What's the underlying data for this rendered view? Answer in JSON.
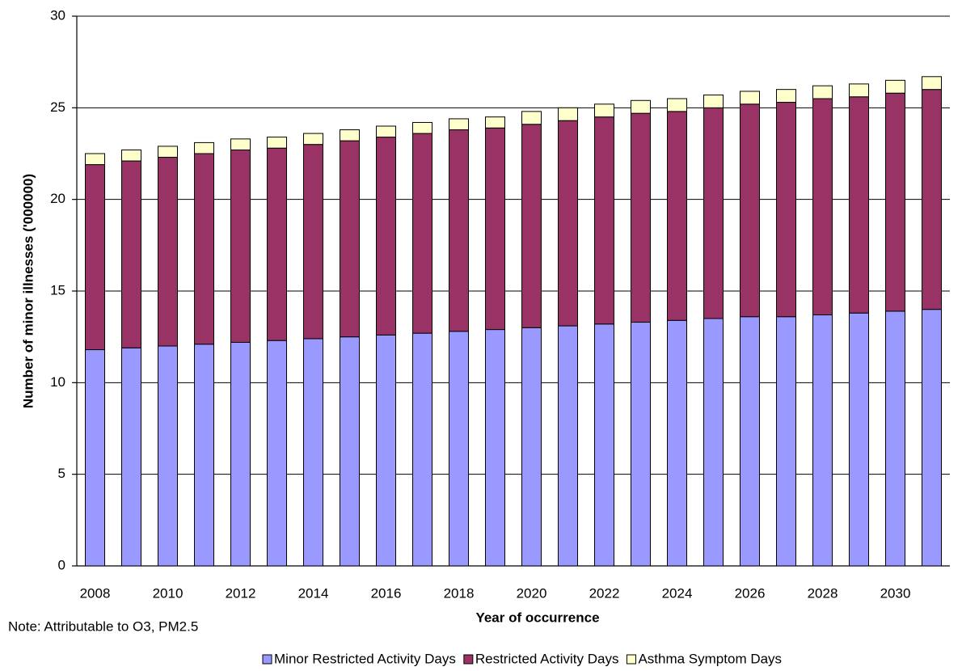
{
  "chart_data": {
    "type": "stacked_bar",
    "y_label": "Number of minor illnesses ('000000)",
    "x_label": "Year of occurrence",
    "note": "Note: Attributable to O3, PM2.5",
    "categories": [
      "2008",
      null,
      "2010",
      null,
      "2012",
      null,
      "2014",
      null,
      "2016",
      null,
      "2018",
      null,
      "2020",
      null,
      "2022",
      null,
      "2024",
      null,
      "2026",
      null,
      "2028",
      null,
      "2030",
      null
    ],
    "series": [
      {
        "name": "Minor Restricted Activity Days",
        "color": "#9999ff",
        "values": [
          11.8,
          11.9,
          12.0,
          12.1,
          12.2,
          12.3,
          12.4,
          12.5,
          12.6,
          12.7,
          12.8,
          12.9,
          13.0,
          13.1,
          13.2,
          13.3,
          13.4,
          13.5,
          13.6,
          13.6,
          13.7,
          13.8,
          13.9,
          14.0
        ]
      },
      {
        "name": "Restricted Activity Days",
        "color": "#993366",
        "values": [
          10.1,
          10.2,
          10.3,
          10.4,
          10.5,
          10.5,
          10.6,
          10.7,
          10.8,
          10.9,
          11.0,
          11.0,
          11.1,
          11.2,
          11.3,
          11.4,
          11.4,
          11.5,
          11.6,
          11.7,
          11.8,
          11.8,
          11.9,
          12.0
        ]
      },
      {
        "name": "Asthma Symptom Days",
        "color": "#ffffcc",
        "values": [
          0.6,
          0.6,
          0.6,
          0.6,
          0.6,
          0.6,
          0.6,
          0.6,
          0.6,
          0.6,
          0.6,
          0.6,
          0.7,
          0.7,
          0.7,
          0.7,
          0.7,
          0.7,
          0.7,
          0.7,
          0.7,
          0.7,
          0.7,
          0.7
        ]
      }
    ],
    "ylim": [
      0,
      30
    ],
    "yticks": [
      0,
      5,
      10,
      15,
      20,
      25,
      30
    ],
    "grid": true,
    "legend": "bottom"
  }
}
